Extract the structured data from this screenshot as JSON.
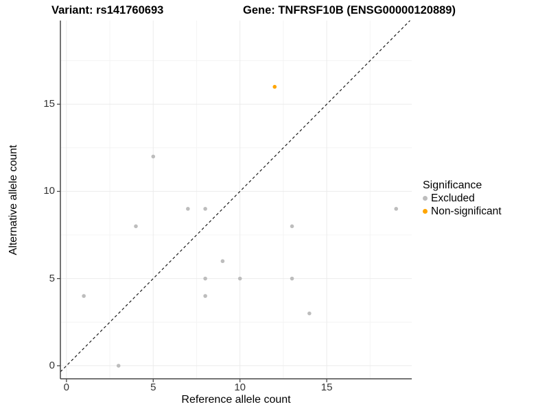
{
  "titles": {
    "variant": "Variant: rs141760693",
    "gene": "Gene: TNFRSF10B (ENSG00000120889)"
  },
  "chart_data": {
    "type": "scatter",
    "x_axis": {
      "label": "Reference allele count",
      "ticks": [
        0,
        5,
        10,
        15
      ],
      "minor_ticks": [
        2.5,
        7.5,
        12.5,
        17.5
      ],
      "domain": [
        -0.35,
        19.9
      ]
    },
    "y_axis": {
      "label": "Alternative allele count",
      "ticks": [
        0,
        5,
        10,
        15
      ],
      "minor_ticks": [
        2.5,
        7.5,
        12.5,
        17.5
      ],
      "domain": [
        -0.75,
        19.8
      ]
    },
    "identity_line": {
      "style": "dashed",
      "color": "#1a1a1a"
    },
    "series": [
      {
        "name": "Excluded",
        "color": "#bdbdbd",
        "points": [
          [
            1,
            4
          ],
          [
            3,
            0
          ],
          [
            4,
            8
          ],
          [
            5,
            12
          ],
          [
            7,
            9
          ],
          [
            8,
            9
          ],
          [
            8,
            5
          ],
          [
            8,
            4
          ],
          [
            9,
            6
          ],
          [
            10,
            5
          ],
          [
            13,
            8
          ],
          [
            13,
            5
          ],
          [
            14,
            3
          ],
          [
            19,
            9
          ]
        ]
      },
      {
        "name": "Non-significant",
        "color": "#ffa500",
        "points": [
          [
            12,
            16
          ]
        ]
      }
    ],
    "legend": {
      "title": "Significance",
      "position": "right"
    }
  },
  "style": {
    "grid_major": "#ebebeb",
    "grid_minor": "#f4f4f4",
    "axis_line": "#474747",
    "tick_mark": "#474747",
    "point_radius": 2.8
  }
}
